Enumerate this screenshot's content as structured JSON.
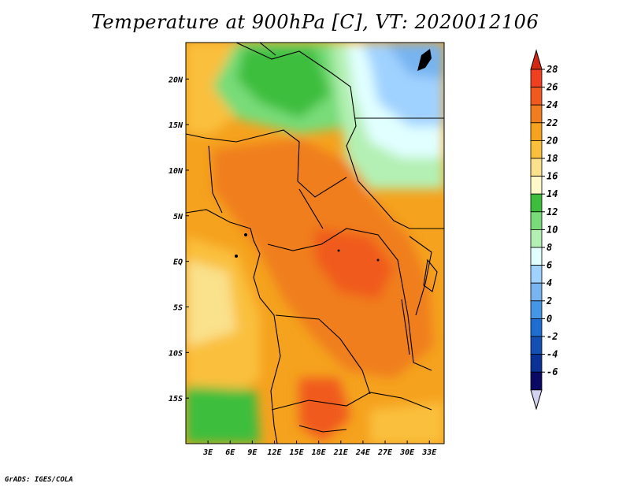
{
  "title": "Temperature at 900hPa [C], VT: 2020012106",
  "credit": "GrADS: IGES/COLA",
  "map": {
    "lon_range": [
      0,
      35
    ],
    "lat_range": [
      -20,
      24
    ],
    "x_ticks": [
      {
        "lon": 3,
        "label": "3E"
      },
      {
        "lon": 6,
        "label": "6E"
      },
      {
        "lon": 9,
        "label": "9E"
      },
      {
        "lon": 12,
        "label": "12E"
      },
      {
        "lon": 15,
        "label": "15E"
      },
      {
        "lon": 18,
        "label": "18E"
      },
      {
        "lon": 21,
        "label": "21E"
      },
      {
        "lon": 24,
        "label": "24E"
      },
      {
        "lon": 27,
        "label": "27E"
      },
      {
        "lon": 30,
        "label": "30E"
      },
      {
        "lon": 33,
        "label": "33E"
      }
    ],
    "y_ticks": [
      {
        "lat": 20,
        "label": "20N"
      },
      {
        "lat": 15,
        "label": "15N"
      },
      {
        "lat": 10,
        "label": "10N"
      },
      {
        "lat": 5,
        "label": "5N"
      },
      {
        "lat": 0,
        "label": "EQ"
      },
      {
        "lat": -5,
        "label": "5S"
      },
      {
        "lat": -10,
        "label": "10S"
      },
      {
        "lat": -15,
        "label": "15S"
      }
    ]
  },
  "colorbar": {
    "levels": [
      28,
      26,
      24,
      22,
      20,
      18,
      16,
      14,
      12,
      10,
      8,
      6,
      4,
      2,
      0,
      -2,
      -4,
      -6
    ],
    "labels": [
      "28",
      "26",
      "24",
      "22",
      "20",
      "18",
      "16",
      "14",
      "12",
      "10",
      "8",
      "6",
      "4",
      "2",
      "0",
      "-2",
      "-4",
      "-6"
    ],
    "colors": [
      "#f04020",
      "#f05a1e",
      "#f07e1e",
      "#f5a21e",
      "#fac03c",
      "#fae18c",
      "#fffac8",
      "#3cbe3c",
      "#78dc78",
      "#b4f0b4",
      "#e1ffff",
      "#a0d2ff",
      "#78b4f0",
      "#4696e6",
      "#1e6ed2",
      "#1450b4",
      "#0a3296",
      "#0a0a64"
    ],
    "top_arrow_color": "#d22814",
    "bottom_arrow_color": "#d2d2f0"
  }
}
